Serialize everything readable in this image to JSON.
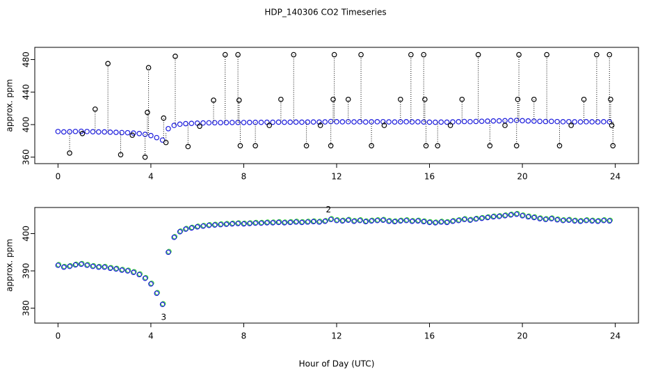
{
  "title": "HDP_140306  CO2 Timeseries",
  "chart_data": [
    {
      "type": "scatter",
      "y_label": "approx. ppm",
      "xlim": [
        -1,
        25
      ],
      "xticks": [
        0,
        4,
        8,
        12,
        16,
        20,
        24
      ],
      "ylim": [
        352,
        495
      ],
      "yticks": [
        360,
        400,
        440,
        480
      ],
      "series": [
        {
          "color": "#1a1adc",
          "marker": "circle",
          "x": [
            0,
            0.25,
            0.5,
            0.75,
            1,
            1.25,
            1.5,
            1.75,
            2,
            2.25,
            2.5,
            2.75,
            3,
            3.25,
            3.5,
            3.75,
            4,
            4.25,
            4.5,
            4.75,
            5,
            5.25,
            5.5,
            5.75,
            6,
            6.25,
            6.5,
            6.75,
            7,
            7.25,
            7.5,
            7.75,
            8,
            8.25,
            8.5,
            8.75,
            9,
            9.25,
            9.5,
            9.75,
            10,
            10.25,
            10.5,
            10.75,
            11,
            11.25,
            11.5,
            11.75,
            12,
            12.25,
            12.5,
            12.75,
            13,
            13.25,
            13.5,
            13.75,
            14,
            14.25,
            14.5,
            14.75,
            15,
            15.25,
            15.5,
            15.75,
            16,
            16.25,
            16.5,
            16.75,
            17,
            17.25,
            17.5,
            17.75,
            18,
            18.25,
            18.5,
            18.75,
            19,
            19.25,
            19.5,
            19.75,
            20,
            20.25,
            20.5,
            20.75,
            21,
            21.25,
            21.5,
            21.75,
            22,
            22.25,
            22.5,
            22.75,
            23,
            23.25,
            23.5,
            23.75
          ],
          "values": [
            391.5,
            391,
            391.2,
            391.6,
            391.8,
            391.5,
            391.2,
            391,
            391,
            390.7,
            390.5,
            390.2,
            390,
            389.6,
            389,
            388,
            386.5,
            384,
            381,
            395,
            399,
            400.5,
            401.2,
            401.5,
            401.8,
            402,
            402.2,
            402.3,
            402.4,
            402.5,
            402.6,
            402.7,
            402.6,
            402.7,
            402.8,
            402.8,
            402.9,
            402.9,
            403,
            402.9,
            403,
            403.1,
            403,
            403.1,
            403.2,
            403.1,
            403.3,
            403.8,
            403.5,
            403.4,
            403.6,
            403.3,
            403.5,
            403.2,
            403.4,
            403.5,
            403.6,
            403.3,
            403.2,
            403.4,
            403.5,
            403.3,
            403.4,
            403.2,
            403,
            402.9,
            403.1,
            403,
            403.3,
            403.5,
            403.8,
            403.6,
            403.9,
            404.1,
            404.3,
            404.5,
            404.6,
            404.8,
            405,
            405.2,
            404.8,
            404.5,
            404.3,
            404,
            403.8,
            404,
            403.7,
            403.5,
            403.6,
            403.4,
            403.3,
            403.5,
            403.4,
            403.3,
            403.5,
            403.4
          ]
        },
        {
          "color": "#000000",
          "marker": "circle",
          "stems": true,
          "x": [
            0.5,
            1.05,
            1.6,
            2.15,
            2.7,
            3.2,
            3.75,
            3.85,
            3.9,
            4.55,
            4.65,
            5.05,
            5.6,
            6.1,
            6.7,
            7.2,
            7.75,
            7.8,
            7.85,
            8.5,
            9.1,
            9.6,
            10.15,
            10.7,
            11.3,
            11.75,
            11.85,
            11.9,
            12.5,
            13.05,
            13.5,
            14.05,
            14.75,
            15.2,
            15.75,
            15.8,
            15.85,
            16.35,
            16.9,
            17.4,
            18.1,
            18.6,
            19.25,
            19.75,
            19.8,
            19.85,
            20.5,
            21.05,
            21.6,
            22.1,
            22.65,
            23.2,
            23.75,
            23.8,
            23.85,
            23.9
          ],
          "values": [
            365,
            389,
            419,
            475,
            363,
            387,
            360,
            415,
            470,
            408,
            378,
            484,
            373,
            398,
            430,
            486,
            486,
            430,
            374,
            374,
            399,
            431,
            486,
            374,
            399,
            374,
            431,
            486,
            431,
            486,
            374,
            399,
            431,
            486,
            486,
            431,
            374,
            374,
            399,
            431,
            486,
            374,
            399,
            374,
            431,
            486,
            431,
            486,
            374,
            399,
            431,
            486,
            486,
            431,
            399,
            374
          ]
        }
      ]
    },
    {
      "type": "scatter",
      "y_label": "approx. ppm",
      "x_label": "Hour of Day (UTC)",
      "xlim": [
        -1,
        25
      ],
      "xticks": [
        0,
        4,
        8,
        12,
        16,
        20,
        24
      ],
      "ylim": [
        376,
        407
      ],
      "yticks": [
        380,
        390,
        400
      ],
      "series": [
        {
          "color": "#1a1adc",
          "edge_color": "#22cc22",
          "marker": "circle",
          "x": [
            0,
            0.25,
            0.5,
            0.75,
            1,
            1.25,
            1.5,
            1.75,
            2,
            2.25,
            2.5,
            2.75,
            3,
            3.25,
            3.5,
            3.75,
            4,
            4.25,
            4.5,
            4.75,
            5,
            5.25,
            5.5,
            5.75,
            6,
            6.25,
            6.5,
            6.75,
            7,
            7.25,
            7.5,
            7.75,
            8,
            8.25,
            8.5,
            8.75,
            9,
            9.25,
            9.5,
            9.75,
            10,
            10.25,
            10.5,
            10.75,
            11,
            11.25,
            11.5,
            11.75,
            12,
            12.25,
            12.5,
            12.75,
            13,
            13.25,
            13.5,
            13.75,
            14,
            14.25,
            14.5,
            14.75,
            15,
            15.25,
            15.5,
            15.75,
            16,
            16.25,
            16.5,
            16.75,
            17,
            17.25,
            17.5,
            17.75,
            18,
            18.25,
            18.5,
            18.75,
            19,
            19.25,
            19.5,
            19.75,
            20,
            20.25,
            20.5,
            20.75,
            21,
            21.25,
            21.5,
            21.75,
            22,
            22.25,
            22.5,
            22.75,
            23,
            23.25,
            23.5,
            23.75
          ],
          "values": [
            391.5,
            391,
            391.2,
            391.6,
            391.8,
            391.5,
            391.2,
            391,
            391,
            390.7,
            390.5,
            390.2,
            390,
            389.6,
            389,
            388,
            386.5,
            384,
            381,
            395,
            399,
            400.5,
            401.2,
            401.5,
            401.8,
            402,
            402.2,
            402.3,
            402.4,
            402.5,
            402.6,
            402.7,
            402.6,
            402.7,
            402.8,
            402.8,
            402.9,
            402.9,
            403,
            402.9,
            403,
            403.1,
            403,
            403.1,
            403.2,
            403.1,
            403.3,
            403.8,
            403.5,
            403.4,
            403.6,
            403.3,
            403.5,
            403.2,
            403.4,
            403.5,
            403.6,
            403.3,
            403.2,
            403.4,
            403.5,
            403.3,
            403.4,
            403.2,
            403,
            402.9,
            403.1,
            403,
            403.3,
            403.5,
            403.8,
            403.6,
            403.9,
            404.1,
            404.3,
            404.5,
            404.6,
            404.8,
            405,
            405.2,
            404.8,
            404.5,
            404.3,
            404,
            403.8,
            404,
            403.7,
            403.5,
            403.6,
            403.4,
            403.3,
            403.5,
            403.4,
            403.3,
            403.5,
            403.4
          ]
        }
      ],
      "annotations": [
        {
          "text": "2",
          "x": 11.65,
          "y": 406.3,
          "color": "#22cc22"
        },
        {
          "text": "3",
          "x": 4.55,
          "y": 377.5,
          "color": "#1a1adc"
        }
      ]
    }
  ]
}
